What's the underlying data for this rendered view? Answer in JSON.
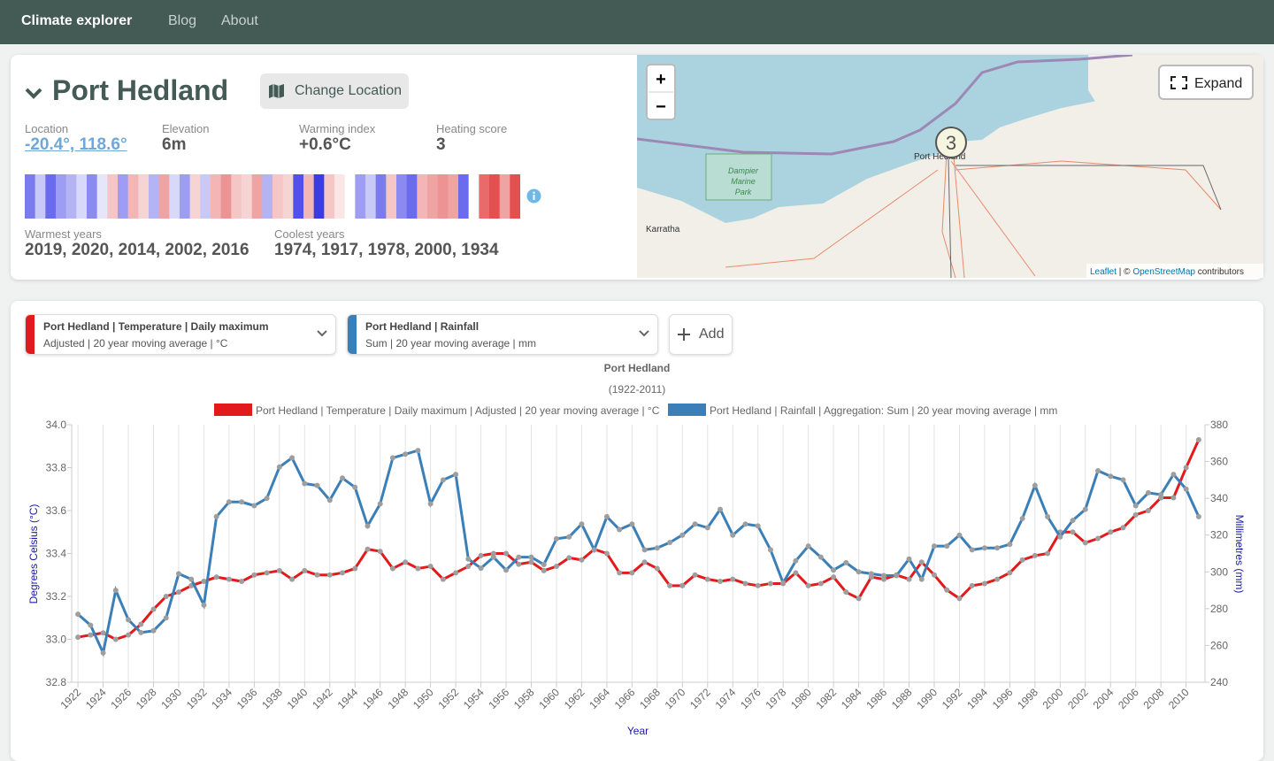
{
  "nav": {
    "brand": "Climate explorer",
    "links": [
      "Blog",
      "About"
    ]
  },
  "location": {
    "name": "Port Hedland",
    "change_button": "Change Location",
    "stats": [
      {
        "label": "Location",
        "value": "-20.4°, 118.6°"
      },
      {
        "label": "Elevation",
        "value": "6m"
      },
      {
        "label": "Warming index",
        "value": "+0.6°C"
      },
      {
        "label": "Heating score",
        "value": "3"
      }
    ],
    "stripes": [
      "#7b7bf0",
      "#c9c9f7",
      "#6b6bed",
      "#9d9df3",
      "#b4b4f5",
      "#d8d8fa",
      "#8a8af1",
      "#e6e6fb",
      "#f4c6c6",
      "#9d9df3",
      "#f3b5b5",
      "#f7d4d4",
      "#b4b4f5",
      "#f0a3a3",
      "#d8d8fa",
      "#9d9df3",
      "#f7d4d4",
      "#c9c9f7",
      "#f3b5b5",
      "#ee9393",
      "#f4c6c6",
      "#f7d4d4",
      "#f0a3a3",
      "#b4b4f5",
      "#f4c6c6",
      "#f7d4d4",
      "#5050ea",
      "#f3b5b5",
      "#3a3ae6",
      "#f4c6c6",
      "#fbe6e6",
      "#ffffff",
      "#9d9df3",
      "#c9c9f7",
      "#7b7bf0",
      "#f4c6c6",
      "#8a8af1",
      "#6b6bed",
      "#f3b5b5",
      "#f0a3a3",
      "#ee9393",
      "#f0a3a3",
      "#6b6bed",
      "#ffffff",
      "#e86a6a",
      "#e35050",
      "#f0a3a3",
      "#e35050"
    ],
    "warmest_label": "Warmest years",
    "warmest": "2019, 2020, 2014, 2002, 2016",
    "coolest_label": "Coolest years",
    "coolest": "1974, 1917, 1978, 2000, 1934"
  },
  "map": {
    "expand": "Expand",
    "zoom_in": "+",
    "zoom_out": "−",
    "cluster": "3",
    "place_labels": [
      "Port Hedland",
      "Karratha",
      "Dampier",
      "Marine",
      "Park"
    ],
    "attribution_link1": "Leaflet",
    "attribution_sep": " | © ",
    "attribution_link2": "OpenStreetMap",
    "attribution_rest": " contributors"
  },
  "selectors": [
    {
      "title": "Port Hedland | Temperature | Daily maximum",
      "sub": "Adjusted | 20 year moving average | °C",
      "color": "#e31a1c"
    },
    {
      "title": "Port Hedland | Rainfall",
      "sub": "Sum | 20 year moving average | mm",
      "color": "#3a7fb8"
    }
  ],
  "add_button": "Add",
  "chart_data": {
    "type": "line",
    "title": "Port Hedland",
    "subtitle": "(1922-2011)",
    "x_label": "Year",
    "y_label": "Degrees Celsius (°C)",
    "y2_label": "Millimetres (mm)",
    "x": [
      1922,
      1923,
      1924,
      1925,
      1926,
      1927,
      1928,
      1929,
      1930,
      1931,
      1932,
      1933,
      1934,
      1935,
      1936,
      1937,
      1938,
      1939,
      1940,
      1941,
      1942,
      1943,
      1944,
      1945,
      1946,
      1947,
      1948,
      1949,
      1950,
      1951,
      1952,
      1953,
      1954,
      1955,
      1956,
      1957,
      1958,
      1959,
      1960,
      1961,
      1962,
      1963,
      1964,
      1965,
      1966,
      1967,
      1968,
      1969,
      1970,
      1971,
      1972,
      1973,
      1974,
      1975,
      1976,
      1977,
      1978,
      1979,
      1980,
      1981,
      1982,
      1983,
      1984,
      1985,
      1986,
      1987,
      1988,
      1989,
      1990,
      1991,
      1992,
      1993,
      1994,
      1995,
      1996,
      1997,
      1998,
      1999,
      2000,
      2001,
      2002,
      2003,
      2004,
      2005,
      2006,
      2007,
      2008,
      2009,
      2010,
      2011
    ],
    "xlim": [
      1921.5,
      2011.5
    ],
    "xticks": [
      1922,
      1924,
      1926,
      1928,
      1930,
      1932,
      1934,
      1936,
      1938,
      1940,
      1942,
      1944,
      1946,
      1948,
      1950,
      1952,
      1954,
      1956,
      1958,
      1960,
      1962,
      1964,
      1966,
      1968,
      1970,
      1972,
      1974,
      1976,
      1978,
      1980,
      1982,
      1984,
      1986,
      1988,
      1990,
      1992,
      1994,
      1996,
      1998,
      2000,
      2002,
      2004,
      2006,
      2008,
      2010
    ],
    "ylim": [
      32.8,
      34
    ],
    "yticks": [
      32.8,
      {
        "value": 33,
        "label": "33.0"
      },
      33.2,
      33.4,
      33.6,
      33.8,
      {
        "value": 34,
        "label": "34.0"
      }
    ],
    "y2lim": [
      240,
      380
    ],
    "y2ticks": [
      240,
      260,
      280,
      300,
      320,
      340,
      360,
      380
    ],
    "xgrid": true,
    "marker_color": "#9e9e9e",
    "series": [
      {
        "name": "Port Hedland | Temperature | Daily maximum | Adjusted | 20 year moving average | °C",
        "color": "#e31a1c",
        "axis": "y",
        "values": [
          33.01,
          33.02,
          33.03,
          33.0,
          33.02,
          33.07,
          33.14,
          33.2,
          33.22,
          33.25,
          33.27,
          33.29,
          33.28,
          33.27,
          33.3,
          33.31,
          33.32,
          33.28,
          33.32,
          33.3,
          33.3,
          33.31,
          33.33,
          33.42,
          33.41,
          33.33,
          33.36,
          33.33,
          33.34,
          33.28,
          33.31,
          33.34,
          33.39,
          33.4,
          33.4,
          33.35,
          33.36,
          33.32,
          33.34,
          33.38,
          33.37,
          33.42,
          33.4,
          33.31,
          33.31,
          33.36,
          33.33,
          33.25,
          33.25,
          33.3,
          33.28,
          33.27,
          33.28,
          33.26,
          33.25,
          33.26,
          33.26,
          33.31,
          33.25,
          33.26,
          33.29,
          33.22,
          33.19,
          33.29,
          33.28,
          33.3,
          33.28,
          33.36,
          33.3,
          33.23,
          33.19,
          33.25,
          33.26,
          33.28,
          33.31,
          33.37,
          33.39,
          33.4,
          33.5,
          33.5,
          33.45,
          33.47,
          33.5,
          33.52,
          33.58,
          33.6,
          33.66,
          33.66,
          33.8,
          33.93
        ]
      },
      {
        "name": "Port Hedland | Rainfall | Aggregation: Sum | 20 year moving average | mm",
        "color": "#3a7fb8",
        "axis": "y2",
        "values": [
          277,
          271,
          256,
          290,
          274,
          267,
          268,
          275,
          299,
          296,
          282,
          330,
          338,
          338,
          336,
          340,
          357,
          362,
          348,
          347,
          339,
          351,
          346,
          325,
          337,
          362,
          364,
          366,
          337,
          350,
          353,
          307,
          302,
          308,
          301,
          308,
          308,
          304,
          318,
          319,
          326,
          312,
          330,
          323,
          326,
          312,
          313,
          316,
          320,
          326,
          324,
          334,
          320,
          326,
          325,
          312,
          294,
          306,
          314,
          308,
          301,
          305,
          300,
          299,
          298,
          298,
          307,
          296,
          314,
          314,
          320,
          312,
          313,
          313,
          315,
          329,
          347,
          330,
          319,
          328,
          334,
          355,
          352,
          350,
          336,
          343,
          342,
          353,
          345,
          330
        ]
      }
    ]
  }
}
